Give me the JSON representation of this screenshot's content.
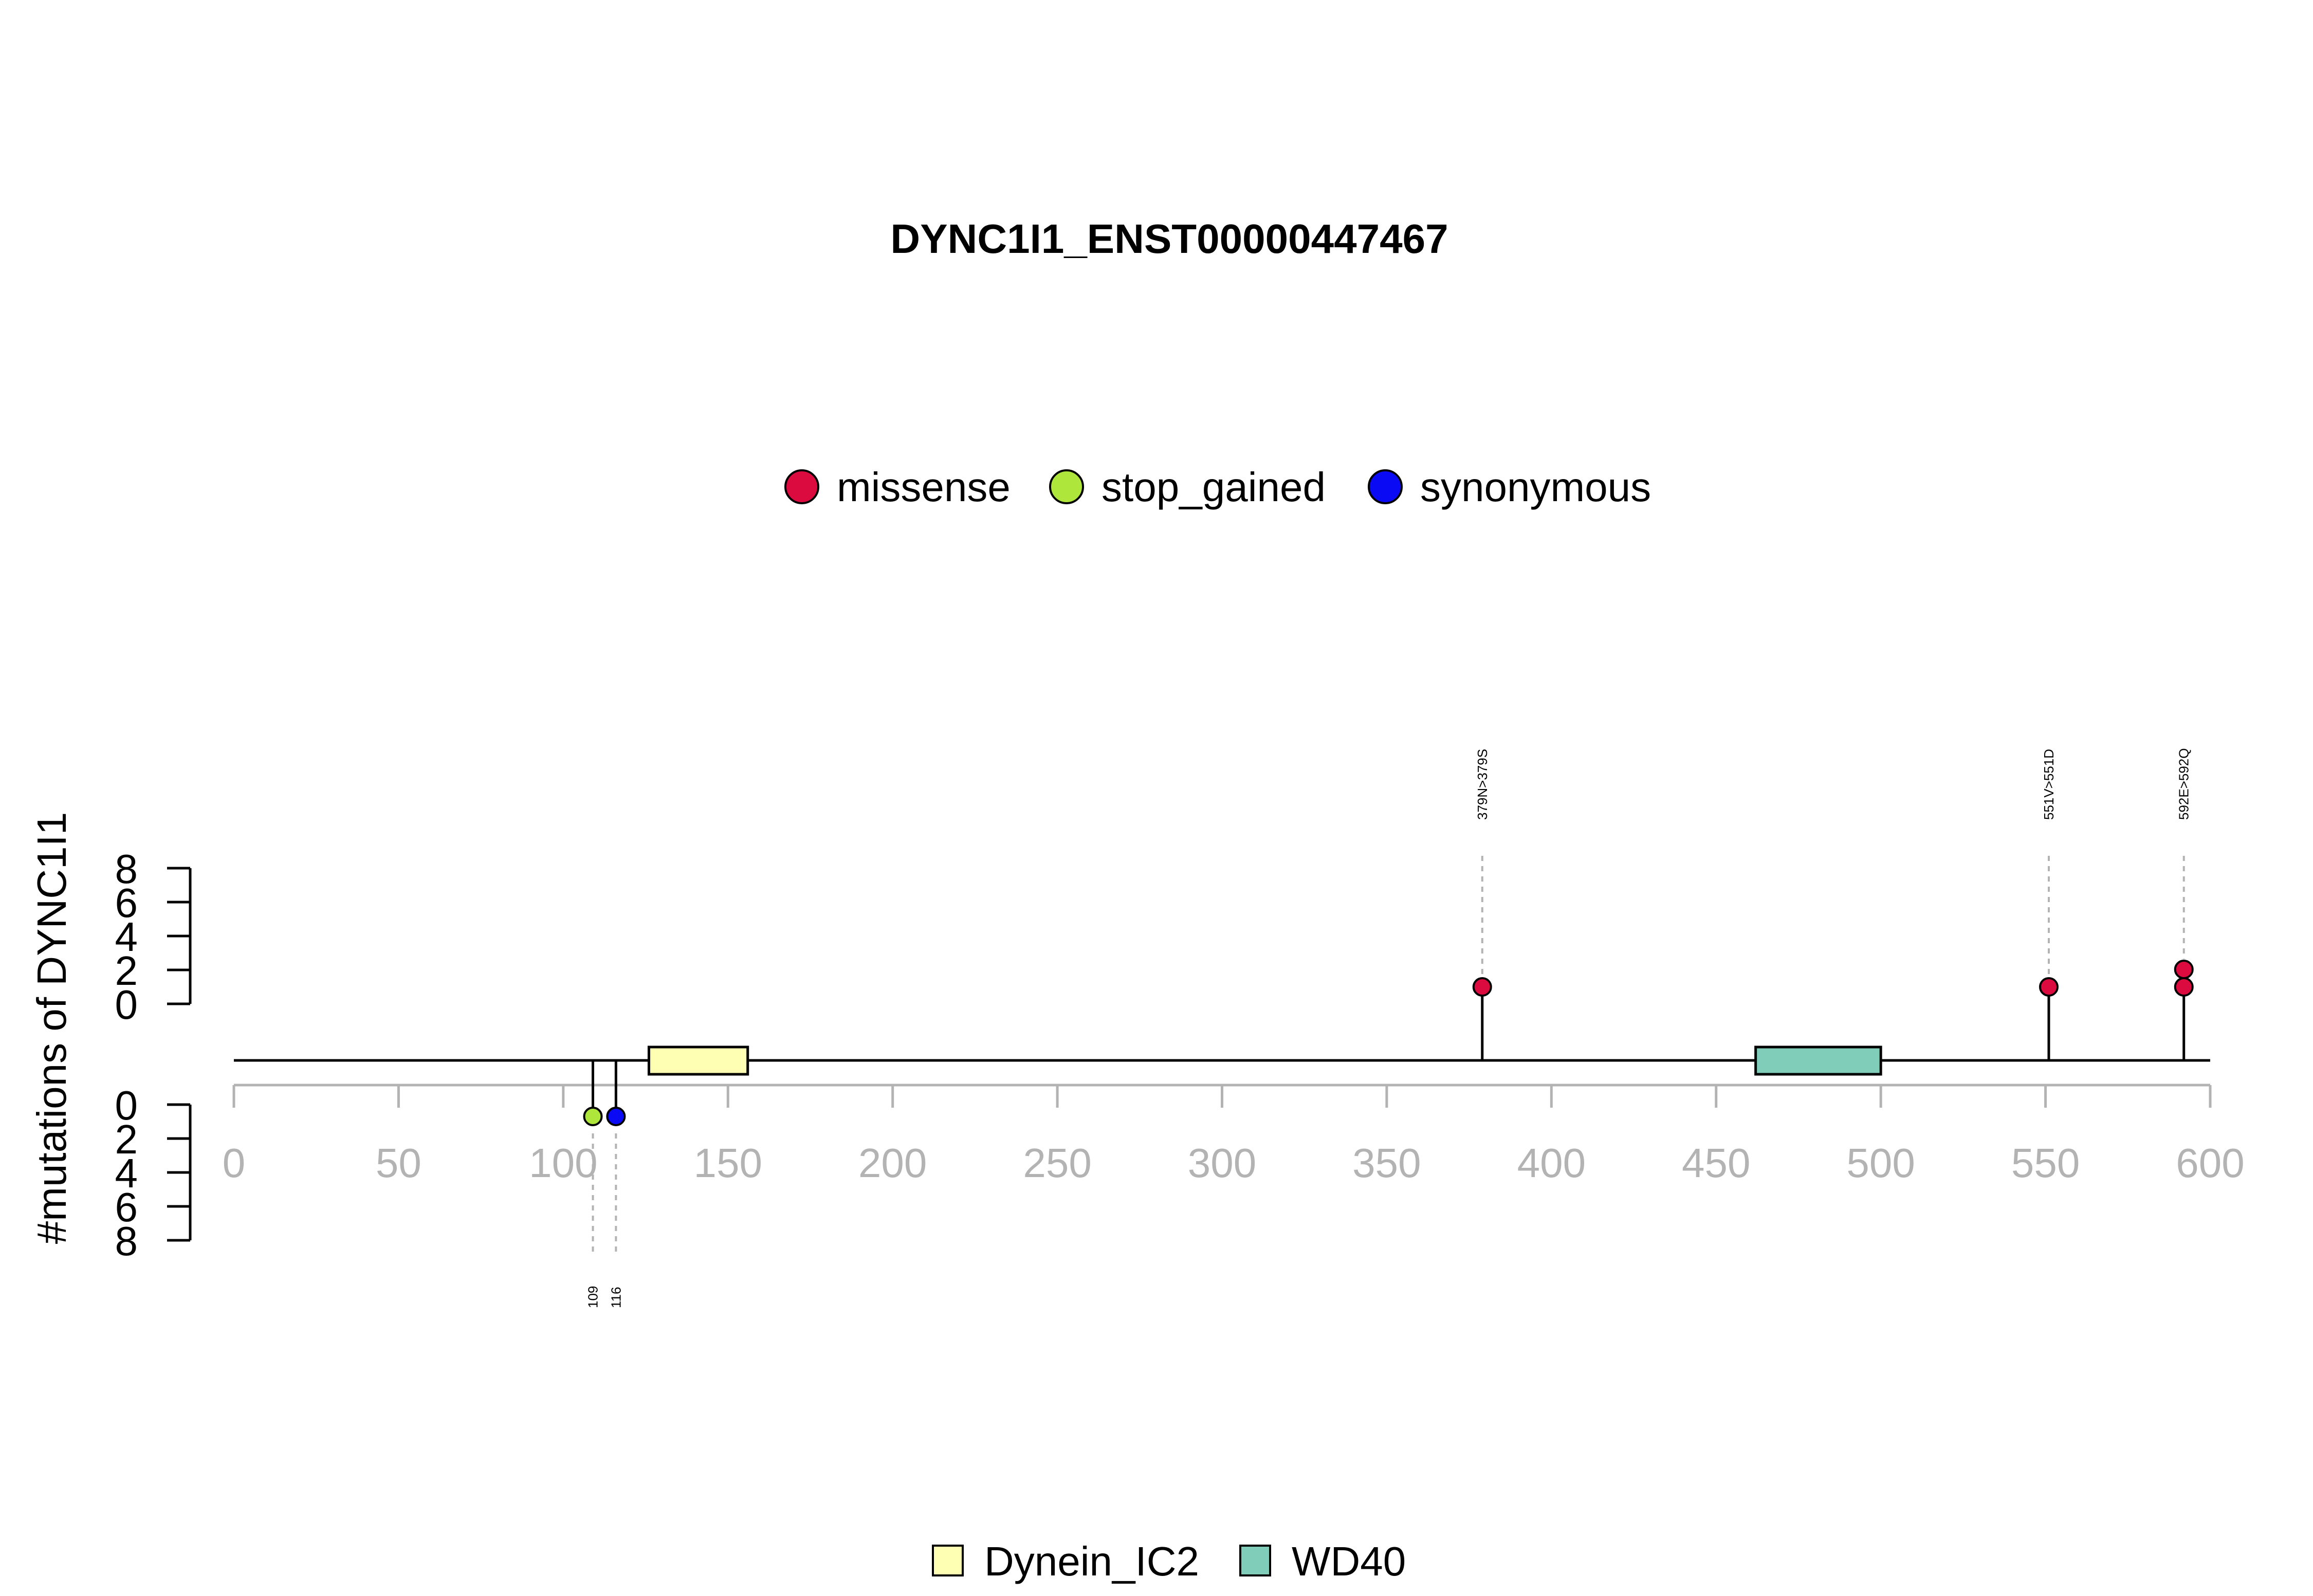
{
  "chart_data": {
    "type": "lollipop",
    "title": "DYNC1I1_ENST00000447467",
    "ylabel": "#mutations of DYNC1I1",
    "xlim": [
      0,
      600
    ],
    "x_ticks": [
      "0",
      "50",
      "100",
      "150",
      "200",
      "250",
      "300",
      "350",
      "400",
      "450",
      "500",
      "550",
      "600"
    ],
    "y_ticks_upper": [
      "0",
      "2",
      "4",
      "6",
      "8"
    ],
    "y_ticks_lower": [
      "0",
      "2",
      "4",
      "6",
      "8"
    ],
    "mutation_legend": [
      {
        "label": "missense",
        "color": "#DC0B3F"
      },
      {
        "label": "stop_gained",
        "color": "#AEE63B"
      },
      {
        "label": "synonymous",
        "color": "#0A0AF5"
      }
    ],
    "domain_legend": [
      {
        "label": "Dynein_IC2",
        "color": "#FFFFB3"
      },
      {
        "label": "WD40",
        "color": "#80CDB9"
      }
    ],
    "domains": [
      {
        "name": "Dynein_IC2",
        "start": 126,
        "end": 156,
        "color": "#FFFFB3"
      },
      {
        "name": "WD40",
        "start": 462,
        "end": 500,
        "color": "#80CDB9"
      }
    ],
    "mutations_upper": [
      {
        "position": 379,
        "count": 1,
        "type": "missense",
        "label": "379N>379S"
      },
      {
        "position": 551,
        "count": 1,
        "type": "missense",
        "label": "551V>551D"
      },
      {
        "position": 592,
        "count": 2,
        "type": "missense",
        "label": "592E>592Q"
      }
    ],
    "mutations_lower": [
      {
        "position": 109,
        "count": 1,
        "type": "stop_gained",
        "label": "109"
      },
      {
        "position": 116,
        "count": 1,
        "type": "synonymous",
        "label": "116"
      }
    ]
  }
}
